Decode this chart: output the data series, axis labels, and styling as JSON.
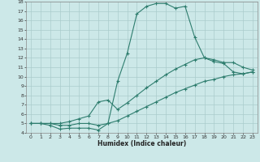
{
  "xlabel": "Humidex (Indice chaleur)",
  "x": [
    0,
    1,
    2,
    3,
    4,
    5,
    6,
    7,
    8,
    9,
    10,
    11,
    12,
    13,
    14,
    15,
    16,
    17,
    18,
    19,
    20,
    21,
    22,
    23
  ],
  "line_max": [
    5.0,
    5.0,
    4.8,
    4.4,
    4.5,
    4.5,
    4.5,
    4.3,
    5.0,
    9.5,
    12.5,
    16.7,
    17.5,
    17.8,
    17.8,
    17.3,
    17.5,
    14.2,
    12.0,
    11.6,
    11.4,
    10.5,
    10.3,
    10.5
  ],
  "line_mid": [
    5.0,
    5.0,
    5.0,
    5.0,
    5.2,
    5.5,
    5.8,
    7.3,
    7.5,
    6.5,
    7.2,
    8.0,
    8.8,
    9.5,
    10.2,
    10.8,
    11.3,
    11.8,
    12.0,
    11.8,
    11.5,
    11.5,
    11.0,
    10.7
  ],
  "line_min": [
    5.0,
    5.0,
    5.0,
    4.8,
    4.8,
    5.0,
    5.0,
    4.8,
    5.0,
    5.3,
    5.8,
    6.3,
    6.8,
    7.3,
    7.8,
    8.3,
    8.7,
    9.1,
    9.5,
    9.7,
    10.0,
    10.2,
    10.3,
    10.5
  ],
  "line_color": "#2e7d6e",
  "bg_color": "#cce8e8",
  "grid_color": "#aacccc",
  "ylim": [
    4,
    18
  ],
  "yticks": [
    4,
    5,
    6,
    7,
    8,
    9,
    10,
    11,
    12,
    13,
    14,
    15,
    16,
    17,
    18
  ],
  "xlim": [
    -0.5,
    23.5
  ],
  "xticks": [
    0,
    1,
    2,
    3,
    4,
    5,
    6,
    7,
    8,
    9,
    10,
    11,
    12,
    13,
    14,
    15,
    16,
    17,
    18,
    19,
    20,
    21,
    22,
    23
  ]
}
